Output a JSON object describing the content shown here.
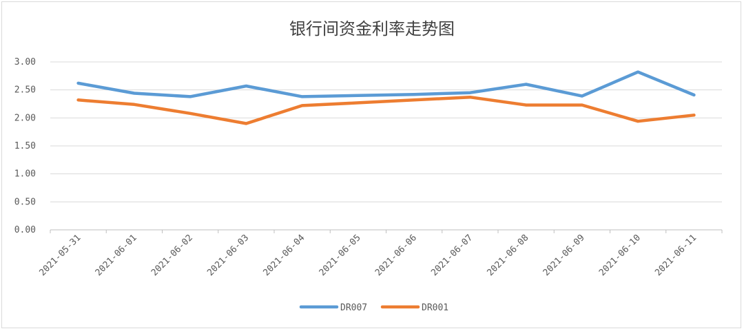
{
  "chart_data": {
    "type": "line",
    "title": "银行间资金利率走势图",
    "xlabel": "",
    "ylabel": "",
    "x": [
      "2021-05-31",
      "2021-06-01",
      "2021-06-02",
      "2021-06-03",
      "2021-06-04",
      "2021-06-05",
      "2021-06-06",
      "2021-06-07",
      "2021-06-08",
      "2021-06-09",
      "2021-06-10",
      "2021-06-11"
    ],
    "y_ticks": [
      "3.00",
      "2.50",
      "2.00",
      "1.50",
      "1.00",
      "0.50",
      "0.00"
    ],
    "ylim": [
      0,
      3
    ],
    "grid": true,
    "legend": "bottom",
    "series": [
      {
        "name": "DR007",
        "color": "#5b9bd5",
        "values": [
          2.62,
          2.44,
          2.38,
          2.57,
          2.38,
          2.4,
          2.42,
          2.45,
          2.6,
          2.39,
          2.82,
          2.41
        ]
      },
      {
        "name": "DR001",
        "color": "#ed7d31",
        "values": [
          2.32,
          2.24,
          2.08,
          1.9,
          2.22,
          2.27,
          2.32,
          2.37,
          2.23,
          2.23,
          1.94,
          2.05
        ]
      }
    ]
  }
}
